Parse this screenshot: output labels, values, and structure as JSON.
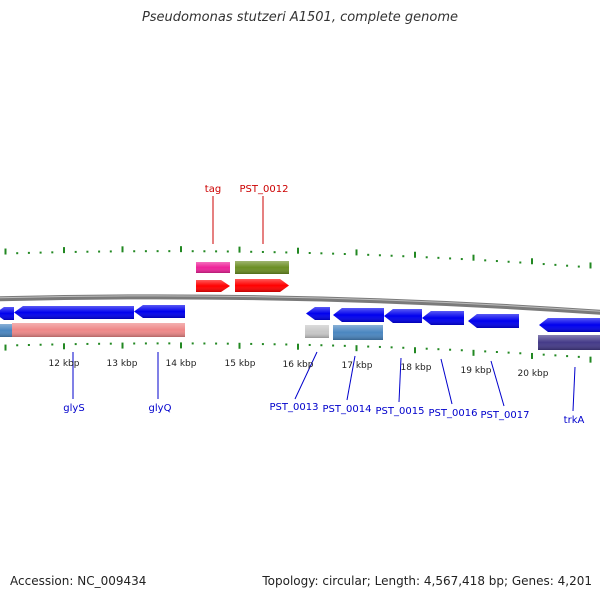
{
  "title": "Pseudomonas stutzeri A1501, complete genome",
  "footer": {
    "accession": "Accession: NC_009434",
    "topology": "Topology: circular; Length: 4,567,418 bp; Genes: 4,201"
  },
  "colors": {
    "backbone": "#7a7a7a",
    "tick": "#228822",
    "gene_blue": "#0000ee",
    "gene_red": "#ff0000",
    "trna_pink": "#ee2299",
    "olive": "#6b8e23",
    "salmon": "#ee8888",
    "steel": "#4a86c0",
    "grey": "#c8c8c8",
    "navy": "#443a88",
    "label_blue": "#0000cc",
    "label_red": "#cc0000"
  },
  "scale_labels": [
    "12 kbp",
    "13 kbp",
    "14 kbp",
    "15 kbp",
    "16 kbp",
    "17 kbp",
    "18 kbp",
    "19 kbp",
    "20 kbp"
  ],
  "gene_labels_top": [
    "tag",
    "PST_0012"
  ],
  "gene_labels_bottom": [
    "glyS",
    "glyQ",
    "PST_0013",
    "PST_0014",
    "PST_0015",
    "PST_0016",
    "PST_0017",
    "trkA"
  ]
}
